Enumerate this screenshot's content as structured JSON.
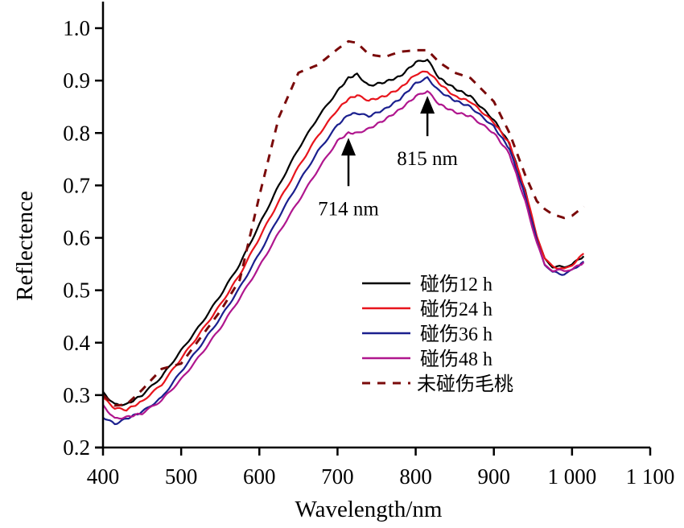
{
  "chart_data": {
    "type": "line",
    "title": "",
    "xlabel": "Wavelength/nm",
    "ylabel": "Reflectence",
    "xlim": [
      400,
      1100
    ],
    "ylim": [
      0.2,
      1.0
    ],
    "xticks": [
      400,
      500,
      600,
      700,
      800,
      900,
      1000,
      1100
    ],
    "xtick_labels": [
      "400",
      "500",
      "600",
      "700",
      "800",
      "900",
      "1 000",
      "1 100"
    ],
    "yticks": [
      0.2,
      0.3,
      0.4,
      0.5,
      0.6,
      0.7,
      0.8,
      0.9,
      1.0
    ],
    "ytick_labels": [
      "0.2",
      "0.3",
      "0.4",
      "0.5",
      "0.6",
      "0.7",
      "0.8",
      "0.9",
      "1.0"
    ],
    "grid": false,
    "legend_position": "lower-right",
    "x": [
      400,
      415,
      430,
      450,
      475,
      500,
      525,
      550,
      575,
      600,
      625,
      650,
      675,
      700,
      714,
      725,
      740,
      760,
      780,
      800,
      815,
      830,
      850,
      870,
      900,
      920,
      940,
      955,
      965,
      975,
      990,
      1000,
      1015
    ],
    "series": [
      {
        "name": "碰伤12 h",
        "color": "#000000",
        "dash": "solid",
        "values": [
          0.305,
          0.282,
          0.282,
          0.3,
          0.335,
          0.385,
          0.435,
          0.49,
          0.55,
          0.625,
          0.7,
          0.77,
          0.83,
          0.88,
          0.905,
          0.912,
          0.89,
          0.897,
          0.908,
          0.935,
          0.94,
          0.905,
          0.885,
          0.87,
          0.825,
          0.78,
          0.69,
          0.6,
          0.56,
          0.545,
          0.545,
          0.55,
          0.565
        ]
      },
      {
        "name": "碰伤24 h",
        "color": "#e8141c",
        "dash": "solid",
        "values": [
          0.295,
          0.275,
          0.272,
          0.288,
          0.32,
          0.37,
          0.42,
          0.472,
          0.53,
          0.6,
          0.67,
          0.735,
          0.795,
          0.845,
          0.865,
          0.872,
          0.862,
          0.87,
          0.885,
          0.912,
          0.918,
          0.895,
          0.87,
          0.86,
          0.82,
          0.78,
          0.69,
          0.605,
          0.56,
          0.545,
          0.54,
          0.548,
          0.57
        ]
      },
      {
        "name": "碰伤36 h",
        "color": "#1a1f8e",
        "dash": "solid",
        "values": [
          0.258,
          0.245,
          0.255,
          0.268,
          0.295,
          0.345,
          0.395,
          0.447,
          0.505,
          0.57,
          0.64,
          0.705,
          0.765,
          0.815,
          0.835,
          0.838,
          0.832,
          0.845,
          0.865,
          0.895,
          0.905,
          0.88,
          0.862,
          0.85,
          0.812,
          0.77,
          0.68,
          0.595,
          0.55,
          0.535,
          0.53,
          0.538,
          0.555
        ]
      },
      {
        "name": "碰伤48 h",
        "color": "#b0168e",
        "dash": "solid",
        "values": [
          0.28,
          0.255,
          0.258,
          0.265,
          0.29,
          0.33,
          0.377,
          0.428,
          0.485,
          0.545,
          0.61,
          0.67,
          0.73,
          0.785,
          0.8,
          0.8,
          0.808,
          0.825,
          0.845,
          0.87,
          0.88,
          0.855,
          0.84,
          0.832,
          0.8,
          0.76,
          0.67,
          0.59,
          0.548,
          0.538,
          0.538,
          0.54,
          0.553
        ]
      },
      {
        "name": "未碰伤毛桃",
        "color": "#7a0a0a",
        "dash": "dashed",
        "values": [
          0.3,
          0.28,
          0.282,
          0.31,
          0.35,
          0.36,
          0.41,
          0.46,
          0.52,
          0.68,
          0.83,
          0.915,
          0.93,
          0.96,
          0.975,
          0.972,
          0.95,
          0.945,
          0.955,
          0.958,
          0.958,
          0.935,
          0.915,
          0.905,
          0.86,
          0.8,
          0.72,
          0.67,
          0.655,
          0.645,
          0.638,
          0.642,
          0.66
        ]
      }
    ],
    "annotations": [
      {
        "text": "714 nm",
        "x": 714,
        "y": 0.8,
        "arrow": "up"
      },
      {
        "text": "815 nm",
        "x": 815,
        "y": 0.88,
        "arrow": "up"
      }
    ]
  }
}
